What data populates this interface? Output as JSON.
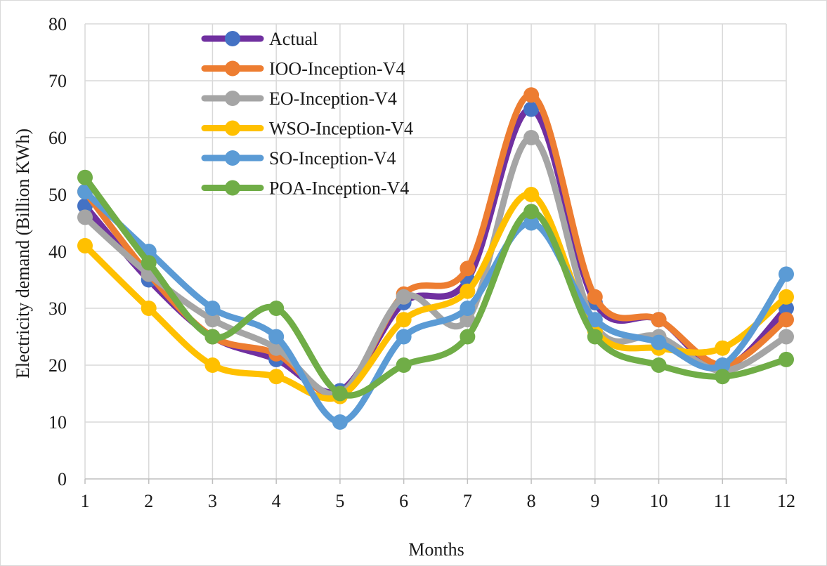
{
  "chart_data": {
    "type": "line",
    "smooth": true,
    "title": "",
    "xlabel": "Months",
    "ylabel": "Electricity demand  (Billion KWh)",
    "x": [
      1,
      2,
      3,
      4,
      5,
      6,
      7,
      8,
      9,
      10,
      11,
      12
    ],
    "ylim": [
      0,
      80
    ],
    "yticks": [
      0,
      10,
      20,
      30,
      40,
      50,
      60,
      70,
      80
    ],
    "grid": true,
    "legend_position": "top-center",
    "series": [
      {
        "name": "Actual",
        "color": "#7030a0",
        "marker_color": "#4472c4",
        "values": [
          48,
          35,
          25,
          21,
          15.5,
          31,
          35,
          65,
          31,
          28,
          19.5,
          30
        ]
      },
      {
        "name": "IOO-Inception-V4",
        "color": "#ed7d31",
        "marker_color": "#ed7d31",
        "values": [
          50.5,
          36,
          25,
          22,
          15,
          32.5,
          37,
          67.5,
          32,
          28,
          20,
          28
        ]
      },
      {
        "name": "EO-Inception-V4",
        "color": "#a5a5a5",
        "marker_color": "#a5a5a5",
        "values": [
          46,
          36,
          28,
          23,
          15,
          32,
          28,
          60,
          27,
          25,
          19,
          25
        ]
      },
      {
        "name": "WSO-Inception-V4",
        "color": "#ffc000",
        "marker_color": "#ffc000",
        "values": [
          41,
          30,
          20,
          18,
          14.5,
          28,
          33,
          50,
          26,
          23,
          23,
          32
        ]
      },
      {
        "name": "SO-Inception-V4",
        "color": "#5b9bd5",
        "marker_color": "#5b9bd5",
        "values": [
          50.5,
          40,
          30,
          25,
          10,
          25,
          30,
          45,
          28,
          24,
          20,
          36
        ]
      },
      {
        "name": "POA-Inception-V4",
        "color": "#70ad47",
        "marker_color": "#70ad47",
        "values": [
          53,
          38,
          25,
          30,
          15,
          20,
          25,
          47,
          25,
          20,
          18,
          21
        ]
      }
    ]
  }
}
